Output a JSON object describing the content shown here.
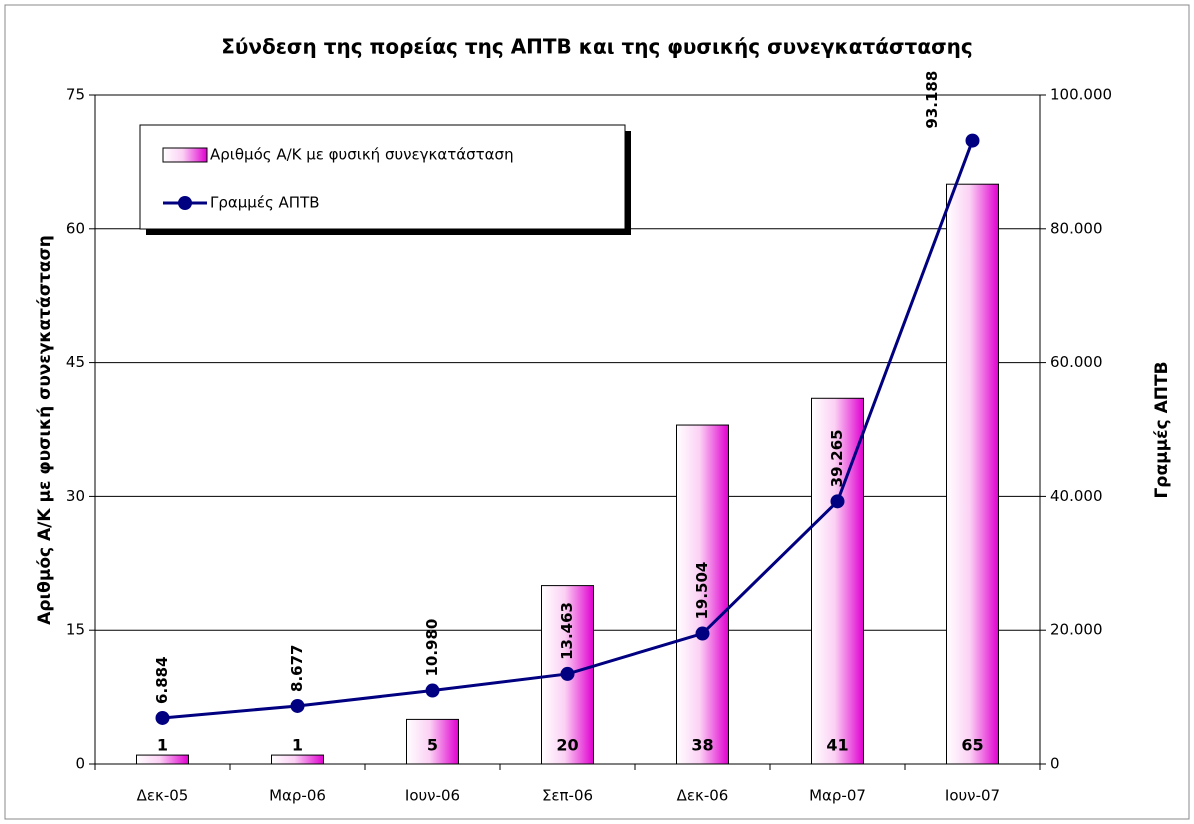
{
  "chart_data": {
    "type": "bar-line",
    "title": "Σύνδεση της πορείας της ΑΠΤΒ και της φυσικής συνεγκατάστασης",
    "y_label": "Αριθμός Α/Κ με φυσική συνεγκατάσταση",
    "y2_label": "Γραμμές ΑΠΤΒ",
    "categories": [
      "Δεκ-05",
      "Μαρ-06",
      "Ιουν-06",
      "Σεπ-06",
      "Δεκ-06",
      "Μαρ-07",
      "Ιουν-07"
    ],
    "series": [
      {
        "name": "Αριθμός Α/Κ με φυσική συνεγκατάσταση",
        "type": "bar",
        "color": "#ff00ff",
        "values": [
          1,
          1,
          5,
          20,
          38,
          41,
          65
        ]
      },
      {
        "name": "Γραμμές ΑΠΤΒ",
        "type": "line",
        "axis": "y2",
        "color": "#000080",
        "values": [
          6884,
          8677,
          10980,
          13463,
          19504,
          39265,
          93188
        ],
        "value_labels": [
          "6.884",
          "8.677",
          "10.980",
          "13.463",
          "19.504",
          "39.265",
          "93.188"
        ]
      }
    ],
    "ylim": [
      0,
      75
    ],
    "yticks": [
      0,
      15,
      30,
      45,
      60,
      75
    ],
    "y2lim": [
      0,
      100000
    ],
    "y2ticks": [
      0,
      {
        "value": 20000,
        "label": "20.000"
      },
      {
        "value": 40000,
        "label": "40.000"
      },
      {
        "value": 60000,
        "label": "60.000"
      },
      {
        "value": 80000,
        "label": "80.000"
      },
      {
        "value": 100000,
        "label": "100.000"
      }
    ],
    "grid": true,
    "legend": "upper left"
  }
}
